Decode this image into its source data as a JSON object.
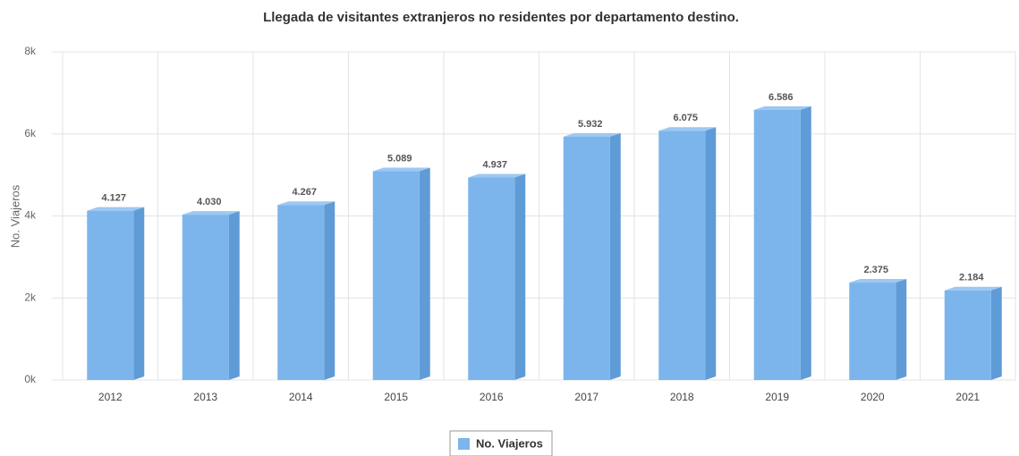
{
  "chart_data": {
    "type": "bar3d",
    "title": "Llegada de visitantes extranjeros no residentes por departamento destino.",
    "y_axis_label": "No. Viajeros",
    "categories": [
      "2012",
      "2013",
      "2014",
      "2015",
      "2016",
      "2017",
      "2018",
      "2019",
      "2020",
      "2021"
    ],
    "series": [
      {
        "name": "No. Viajeros",
        "color": "#7cb5ec",
        "values": [
          4127,
          4030,
          4267,
          5089,
          4937,
          5932,
          6075,
          6586,
          2375,
          2184
        ],
        "value_labels": [
          "4.127",
          "4.030",
          "4.267",
          "5.089",
          "4.937",
          "5.932",
          "6.075",
          "6.586",
          "2.375",
          "2.184"
        ]
      }
    ],
    "ylim": [
      0,
      8000
    ],
    "yticks": [
      {
        "value": 0,
        "label": "0k"
      },
      {
        "value": 2000,
        "label": "2k"
      },
      {
        "value": 4000,
        "label": "4k"
      },
      {
        "value": 6000,
        "label": "6k"
      },
      {
        "value": 8000,
        "label": "8k"
      }
    ],
    "grid": true,
    "legend": "bottom"
  }
}
